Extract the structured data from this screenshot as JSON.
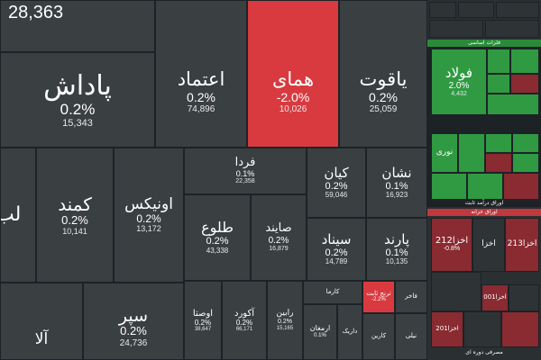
{
  "colors": {
    "background": "#1d2226",
    "tile_neutral": "#3a3f42",
    "tile_negative": "#d83a3f",
    "tile_positive": "#2f9a42",
    "tile_dark_negative": "#8a2a31"
  },
  "top_left_value": "28,363",
  "tiles": {
    "padash": {
      "name": "پاداش",
      "percent": "0.2%",
      "volume": "15,343"
    },
    "etemad": {
      "name": "اعتماد",
      "percent": "0.2%",
      "volume": "74,896"
    },
    "homay": {
      "name": "همای",
      "percent": "-2.0%",
      "volume": "10,026"
    },
    "yaghut": {
      "name": "یاقوت",
      "percent": "0.2%",
      "volume": "25,059"
    },
    "lab": {
      "name": "لب"
    },
    "kamand": {
      "name": "کمند",
      "percent": "0.2%",
      "volume": "10,141"
    },
    "onix": {
      "name": "اونیکس",
      "percent": "0.2%",
      "volume": "13,172"
    },
    "farda": {
      "name": "فردا",
      "percent": "0.1%",
      "volume": "22,358"
    },
    "kian": {
      "name": "کیان",
      "percent": "0.2%",
      "volume": "59,046"
    },
    "neshan": {
      "name": "نشان",
      "percent": "0.1%",
      "volume": "16,923"
    },
    "tolu": {
      "name": "طلوع",
      "percent": "0.2%",
      "volume": "43,338"
    },
    "sayand": {
      "name": "صایند",
      "percent": "0.2%",
      "volume": "16,879"
    },
    "sinad": {
      "name": "سیناد",
      "percent": "0.2%",
      "volume": "14,789"
    },
    "parand": {
      "name": "پارند",
      "percent": "0.1%",
      "volume": "10,135"
    },
    "separ": {
      "name": "سپر",
      "percent": "0.2%",
      "volume": "24,736"
    },
    "ala": {
      "name": "آلا"
    },
    "osta": {
      "name": "اوصتا",
      "percent": "0.2%",
      "volume": "38,647"
    },
    "akord": {
      "name": "آکورد",
      "percent": "0.2%",
      "volume": "66,171"
    },
    "rabin": {
      "name": "رابین",
      "percent": "0.2%",
      "volume": "15,165"
    },
    "karma": {
      "name": "کارما"
    },
    "toranj": {
      "name": "ترنج ثابت",
      "percent": "-2.2%"
    },
    "fakher": {
      "name": "فاخر"
    },
    "armaghan": {
      "name": "ارمغان",
      "percent": "0.1%"
    },
    "darik": {
      "name": "داریک"
    },
    "karin": {
      "name": "کارین"
    },
    "nili": {
      "name": "نیلی"
    }
  },
  "right_panel": {
    "header_top": "فلزات اساسی",
    "foolad": {
      "name": "فولاد",
      "percent": "2.0%",
      "volume": "4,432"
    },
    "noori": {
      "name": "نوری"
    },
    "fixed_income_header": "اوراق درآمد ثابت",
    "treasury_header": "اوراق خزانه",
    "akhza212": {
      "name": "اخزا212",
      "percent": "-0.8%"
    },
    "akhza213": {
      "name": "اخزا213"
    },
    "akhza_b": {
      "name": "اخزا"
    },
    "akhza001": {
      "name": "اخزا001"
    },
    "akhza201": {
      "name": "اخزا201"
    },
    "footer": "مصرفی دوره ای"
  }
}
